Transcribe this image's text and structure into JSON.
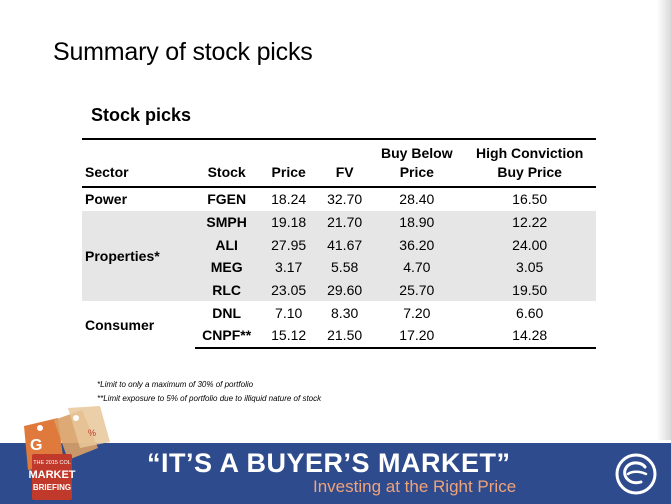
{
  "slide": {
    "title": "Summary of stock picks",
    "table_title": "Stock picks"
  },
  "table": {
    "headers": [
      "Sector",
      "Stock",
      "Price",
      "FV",
      "Buy Below Price",
      "High Conviction Buy Price"
    ],
    "groups": [
      {
        "sector": "Power",
        "shaded": false,
        "rows": [
          [
            "FGEN",
            "18.24",
            "32.70",
            "28.40",
            "16.50"
          ]
        ]
      },
      {
        "sector": "Properties*",
        "shaded": true,
        "rows": [
          [
            "SMPH",
            "19.18",
            "21.70",
            "18.90",
            "12.22"
          ],
          [
            "ALI",
            "27.95",
            "41.67",
            "36.20",
            "24.00"
          ],
          [
            "MEG",
            "3.17",
            "5.58",
            "4.70",
            "3.05"
          ],
          [
            "RLC",
            "23.05",
            "29.60",
            "25.70",
            "19.50"
          ]
        ]
      },
      {
        "sector": "Consumer",
        "shaded": false,
        "rows": [
          [
            "DNL",
            "7.10",
            "8.30",
            "7.20",
            "6.60"
          ],
          [
            "CNPF**",
            "15.12",
            "21.50",
            "17.20",
            "14.28"
          ]
        ]
      }
    ]
  },
  "notes": [
    "*Limit to only a maximum of 30% of portfolio",
    "**Limit exposure to 5% of portfolio due to illiquid nature of stock"
  ],
  "footer": {
    "tagline": "“IT’S A BUYER’S MARKET”",
    "subtitle": "Investing at the Right Price",
    "badge_lines": [
      "THE 2015 COL",
      "MARKET",
      "BRIEFING"
    ],
    "colors": {
      "banner": "#2e4c8d",
      "subtitle": "#f0a37a",
      "tag_orange": "#e07a3c",
      "tag_red": "#c0392b"
    }
  }
}
